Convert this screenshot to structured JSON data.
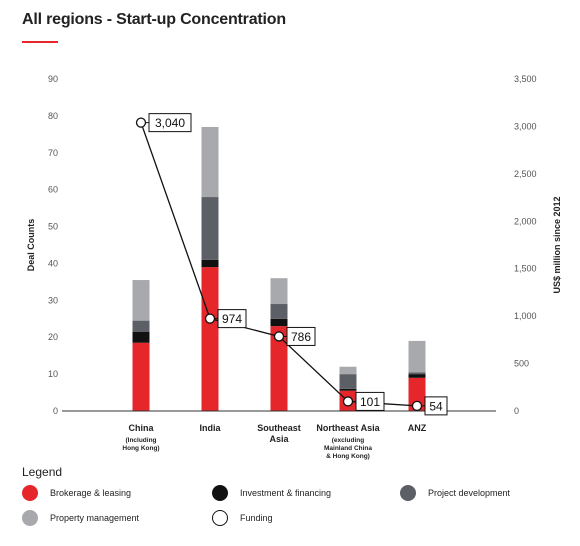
{
  "chart_data": {
    "type": "bar",
    "title": "All regions - Start-up Concentration",
    "ylabel": "Deal Counts",
    "y2label": "US$ million since 2012",
    "ylim": [
      0,
      90
    ],
    "y2lim": [
      0,
      3500
    ],
    "yticks": [
      "0",
      "10",
      "20",
      "30",
      "40",
      "50",
      "60",
      "70",
      "80",
      "90"
    ],
    "y2ticks": [
      "0",
      "500",
      "1,000",
      "1,500",
      "2,000",
      "2,500",
      "3,000",
      "3,500"
    ],
    "categories": [
      [
        "China",
        "(Including",
        "Hong Kong)"
      ],
      [
        "India"
      ],
      [
        "Southeast",
        "Asia"
      ],
      [
        "Northeast Asia",
        "(excluding",
        "Mainland China",
        "& Hong Kong)"
      ],
      [
        "ANZ"
      ]
    ],
    "category_bold_lines": [
      1,
      1,
      2,
      1,
      1
    ],
    "series": [
      {
        "name": "Brokerage & leasing",
        "color": "#e5262b",
        "values": [
          18.5,
          39,
          23,
          5.5,
          9
        ]
      },
      {
        "name": "Investment & financing",
        "color": "#111111",
        "values": [
          3,
          2,
          2,
          0.5,
          1
        ]
      },
      {
        "name": "Project development",
        "color": "#5c5f66",
        "values": [
          3,
          17,
          4,
          4,
          0.5
        ]
      },
      {
        "name": "Property management",
        "color": "#a7a9ac",
        "values": [
          11,
          19,
          7,
          2,
          8.5
        ]
      }
    ],
    "line_series": {
      "name": "Funding",
      "axis": "right",
      "values": [
        3040,
        974,
        786,
        101,
        54
      ],
      "labels": [
        "3,040",
        "974",
        "786",
        "101",
        "54"
      ]
    },
    "legend_title": "Legend",
    "grid": false,
    "legend_placement": "bottom"
  }
}
